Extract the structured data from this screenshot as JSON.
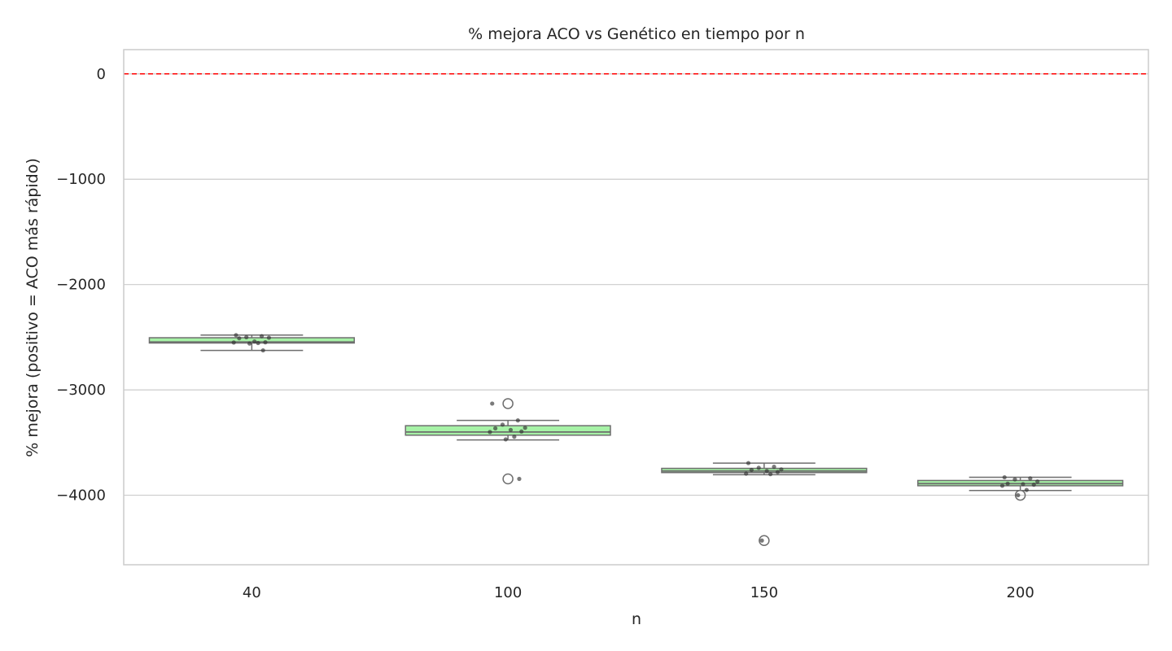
{
  "chart_data": {
    "type": "box",
    "title": "% mejora ACO vs Genético en tiempo por n",
    "xlabel": "n",
    "ylabel": "% mejora (positivo = ACO más rápido)",
    "ylim": [
      -4660,
      230
    ],
    "yticks": [
      0,
      -1000,
      -2000,
      -3000,
      -4000
    ],
    "ytick_labels": [
      "0",
      "−1000",
      "−2000",
      "−3000",
      "−4000"
    ],
    "grid": "horizontal",
    "reference_line": {
      "y": 0,
      "color": "#ff0000",
      "style": "dashed"
    },
    "colors": {
      "box_fill": "#a6f2a6",
      "box_edge": "#6e6e6e",
      "points": "#333333",
      "outlier_edge": "#6e6e6e",
      "grid": "#cccccc",
      "frame": "#cccccc"
    },
    "categories": [
      "40",
      "100",
      "150",
      "200"
    ],
    "boxes": [
      {
        "category": "40",
        "whisker_low": -2625,
        "q1": -2555,
        "median": -2545,
        "q3": -2505,
        "whisker_high": -2480,
        "outliers": []
      },
      {
        "category": "100",
        "whisker_low": -3475,
        "q1": -3430,
        "median": -3400,
        "q3": -3340,
        "whisker_high": -3290,
        "outliers": [
          -3130,
          -3845
        ]
      },
      {
        "category": "150",
        "whisker_low": -3805,
        "q1": -3785,
        "median": -3770,
        "q3": -3745,
        "whisker_high": -3695,
        "outliers": [
          -4430
        ]
      },
      {
        "category": "200",
        "whisker_low": -3955,
        "q1": -3910,
        "median": -3890,
        "q3": -3860,
        "whisker_high": -3830,
        "outliers": [
          -4000
        ]
      }
    ],
    "points": [
      {
        "category": "40",
        "values": [
          -2480,
          -2490,
          -2500,
          -2505,
          -2510,
          -2540,
          -2548,
          -2550,
          -2555,
          -2560,
          -2625
        ]
      },
      {
        "category": "100",
        "values": [
          -3130,
          -3290,
          -3330,
          -3360,
          -3365,
          -3380,
          -3395,
          -3400,
          -3445,
          -3470,
          -3845
        ]
      },
      {
        "category": "150",
        "values": [
          -3695,
          -3730,
          -3740,
          -3755,
          -3760,
          -3770,
          -3780,
          -3795,
          -3800,
          -4430
        ]
      },
      {
        "category": "200",
        "values": [
          -3830,
          -3840,
          -3850,
          -3870,
          -3890,
          -3895,
          -3900,
          -3910,
          -3950,
          -4000
        ]
      }
    ]
  }
}
